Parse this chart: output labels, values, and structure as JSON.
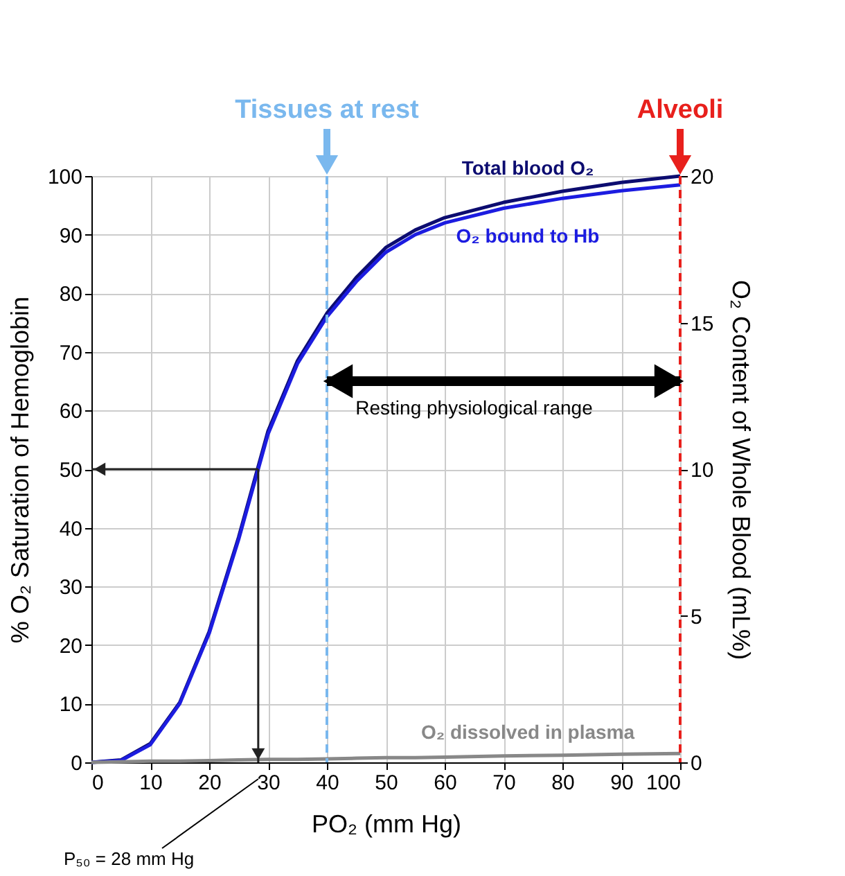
{
  "chart_data": {
    "type": "line",
    "xlabel": "PO₂ (mm Hg)",
    "ylabel": "% O₂ Saturation of Hemoglobin",
    "y2label": "O₂ Content of Whole Blood (mL%)",
    "x": [
      0,
      5,
      10,
      15,
      20,
      25,
      30,
      35,
      40,
      45,
      50,
      55,
      60,
      70,
      80,
      90,
      100
    ],
    "series": [
      {
        "name": "Total blood O₂",
        "color": "#0c0c70",
        "values": [
          0,
          0.4,
          3.2,
          10.2,
          22.3,
          38.4,
          56.5,
          68.5,
          76.6,
          82.7,
          87.8,
          90.8,
          92.9,
          95.5,
          97.4,
          98.9,
          100
        ]
      },
      {
        "name": "O₂ bound to Hb",
        "color": "#1c1ce0",
        "values": [
          0,
          0.3,
          3,
          10,
          22,
          38,
          56,
          68,
          76,
          82,
          87,
          90,
          92,
          94.5,
          96.2,
          97.5,
          98.5
        ]
      },
      {
        "name": "O₂ dissolved in plasma",
        "color": "#888888",
        "values": [
          0,
          0.1,
          0.2,
          0.2,
          0.3,
          0.4,
          0.5,
          0.5,
          0.6,
          0.7,
          0.8,
          0.8,
          0.9,
          1.1,
          1.2,
          1.4,
          1.5
        ]
      }
    ],
    "xlim": [
      0,
      100
    ],
    "xticks": [
      0,
      10,
      20,
      30,
      40,
      50,
      60,
      70,
      80,
      90,
      100
    ],
    "ylim": [
      0,
      100
    ],
    "yticks": [
      0,
      10,
      20,
      30,
      40,
      50,
      60,
      70,
      80,
      90,
      100
    ],
    "y2lim": [
      0,
      20
    ],
    "y2ticks": [
      0,
      5,
      10,
      15,
      20
    ],
    "ref_lines": [
      {
        "axis": "x",
        "value": 40,
        "label": "Tissues at rest",
        "color": "#7ab8ee",
        "line_style": "dashed"
      },
      {
        "axis": "x",
        "value": 100,
        "label": "Alveoli",
        "color": "#e8201c",
        "line_style": "dashed"
      }
    ],
    "annotations": [
      "Resting physiological range",
      "P₅₀ = 28 mm Hg"
    ],
    "grid": true,
    "legend": false,
    "marker": "none",
    "line_style": "solid"
  }
}
